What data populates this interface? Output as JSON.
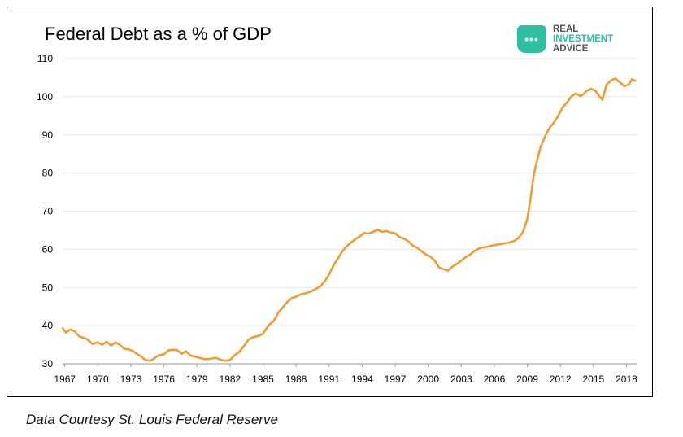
{
  "header": {
    "title": "Federal Debt as a % of GDP"
  },
  "logo": {
    "icon": "speech-bubble-dots-icon",
    "line1": "REAL",
    "line2": "INVESTMENT",
    "line3": "ADVICE",
    "accent": "#2fbf9f"
  },
  "caption": "Data Courtesy St. Louis Federal Reserve",
  "chart_data": {
    "type": "line",
    "title": "Federal Debt as a % of GDP",
    "xlabel": "",
    "ylabel": "",
    "xlim": [
      1966.8,
      2019
    ],
    "ylim": [
      30,
      110
    ],
    "y_ticks": [
      30,
      40,
      50,
      60,
      70,
      80,
      90,
      100,
      110
    ],
    "x_ticks": [
      1967,
      1970,
      1973,
      1976,
      1979,
      1982,
      1985,
      1988,
      1991,
      1994,
      1997,
      2000,
      2003,
      2006,
      2009,
      2012,
      2015,
      2018
    ],
    "grid": "horizontal",
    "line_color": "#f39a32",
    "series": [
      {
        "name": "",
        "x": [
          1966.8,
          1967.1,
          1967.5,
          1967.9,
          1968.3,
          1968.7,
          1969.0,
          1969.5,
          1970.0,
          1970.4,
          1970.8,
          1971.2,
          1971.6,
          1972.0,
          1972.4,
          1972.8,
          1973.2,
          1973.6,
          1974.0,
          1974.3,
          1974.7,
          1975.0,
          1975.5,
          1976.0,
          1976.4,
          1976.8,
          1977.2,
          1977.6,
          1978.0,
          1978.4,
          1978.8,
          1979.3,
          1979.7,
          1980.2,
          1980.7,
          1981.2,
          1981.6,
          1982.0,
          1982.4,
          1982.8,
          1983.3,
          1983.7,
          1984.2,
          1984.6,
          1985.0,
          1985.5,
          1986.0,
          1986.4,
          1986.8,
          1987.2,
          1987.6,
          1988.0,
          1988.4,
          1988.9,
          1989.3,
          1989.8,
          1990.2,
          1990.6,
          1991.0,
          1991.4,
          1991.8,
          1992.2,
          1992.6,
          1993.0,
          1993.4,
          1993.8,
          1994.2,
          1994.6,
          1995.0,
          1995.4,
          1995.8,
          1996.2,
          1996.6,
          1997.0,
          1997.4,
          1997.8,
          1998.2,
          1998.6,
          1999.0,
          1999.4,
          1999.8,
          2000.2,
          2000.6,
          2001.0,
          2001.4,
          2001.8,
          2002.2,
          2002.6,
          2003.0,
          2003.4,
          2003.8,
          2004.2,
          2004.6,
          2005.0,
          2005.4,
          2005.8,
          2006.2,
          2006.6,
          2007.0,
          2007.4,
          2007.8,
          2008.2,
          2008.6,
          2009.0,
          2009.3,
          2009.6,
          2009.9,
          2010.2,
          2010.6,
          2011.0,
          2011.4,
          2011.8,
          2012.2,
          2012.6,
          2013.0,
          2013.4,
          2013.8,
          2014.1,
          2014.4,
          2014.8,
          2015.2,
          2015.5,
          2015.8,
          2016.2,
          2016.6,
          2017.0,
          2017.4,
          2017.8,
          2018.2,
          2018.5,
          2018.8
        ],
        "y": [
          39.3,
          38.2,
          39.0,
          38.5,
          37.2,
          36.8,
          36.5,
          35.2,
          35.6,
          35.0,
          35.8,
          34.8,
          35.6,
          35.0,
          33.9,
          33.8,
          33.3,
          32.5,
          31.8,
          31.0,
          30.8,
          31.2,
          32.2,
          32.5,
          33.5,
          33.7,
          33.6,
          32.6,
          33.3,
          32.2,
          31.9,
          31.5,
          31.2,
          31.3,
          31.6,
          31.0,
          30.8,
          31.0,
          32.2,
          33.0,
          34.8,
          36.4,
          37.1,
          37.3,
          37.9,
          40.1,
          41.3,
          43.5,
          44.8,
          46.2,
          47.2,
          47.6,
          48.2,
          48.5,
          48.9,
          49.6,
          50.3,
          51.6,
          53.4,
          55.8,
          57.6,
          59.5,
          60.8,
          61.8,
          62.7,
          63.4,
          64.3,
          64.1,
          64.6,
          65.1,
          64.6,
          64.8,
          64.4,
          64.2,
          63.2,
          62.8,
          62.1,
          61.0,
          60.4,
          59.5,
          58.6,
          58.1,
          57.0,
          55.2,
          54.8,
          54.4,
          55.5,
          56.2,
          57.0,
          58.0,
          58.6,
          59.6,
          60.2,
          60.5,
          60.7,
          61.0,
          61.2,
          61.4,
          61.6,
          61.8,
          62.2,
          63.0,
          64.5,
          68.0,
          73.5,
          79.8,
          83.5,
          86.8,
          89.5,
          91.8,
          93.2,
          95.0,
          97.2,
          98.5,
          100.1,
          100.9,
          100.2,
          100.7,
          101.6,
          102.1,
          101.5,
          100.3,
          99.2,
          103.2,
          104.3,
          104.8,
          103.8,
          102.8,
          103.2,
          104.6,
          104.2
        ]
      }
    ]
  }
}
